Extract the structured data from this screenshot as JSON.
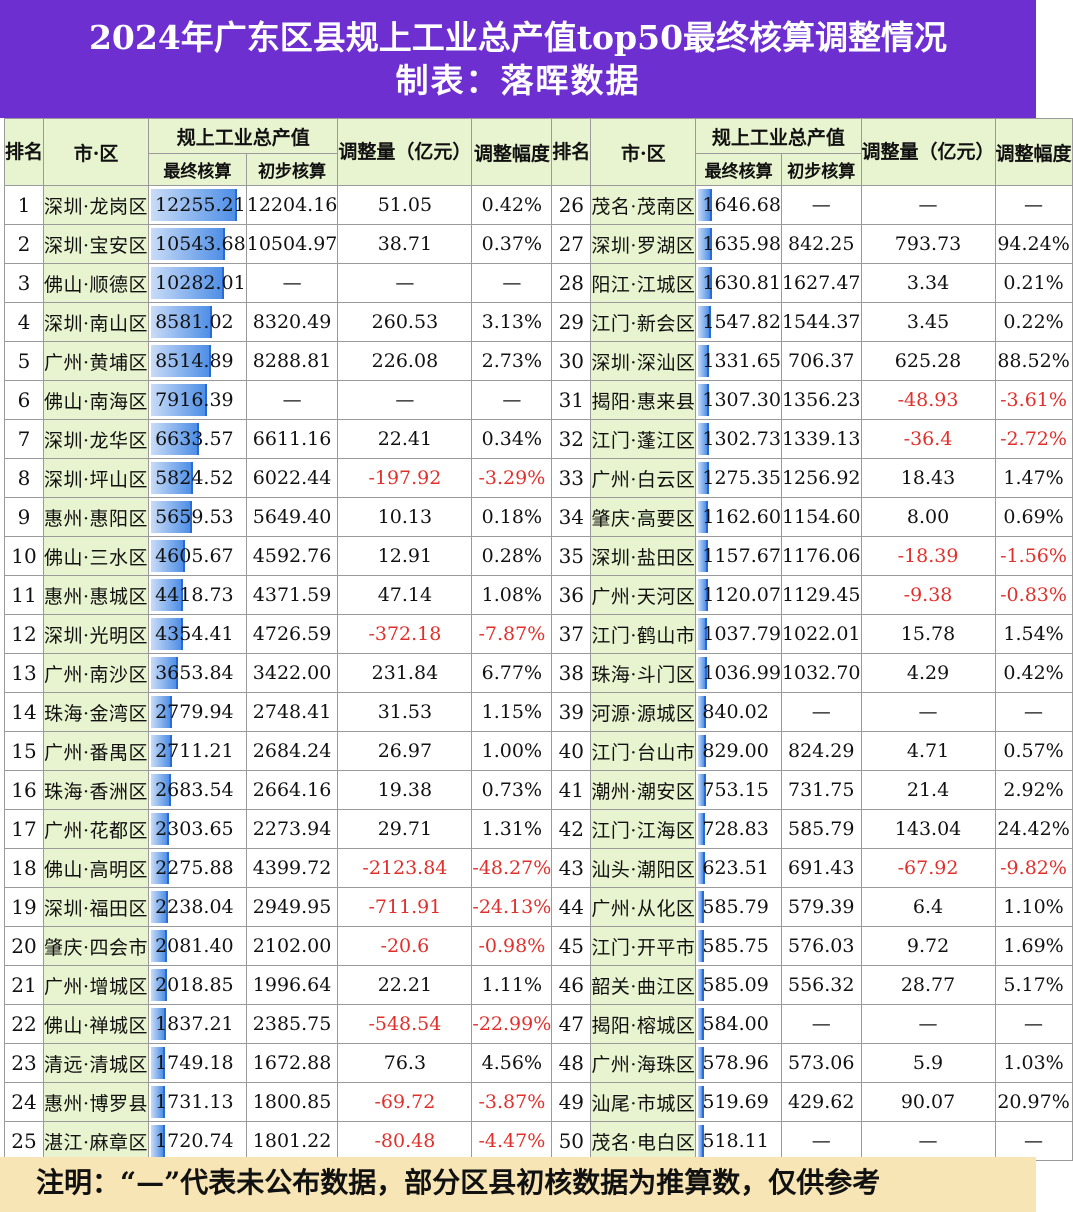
{
  "title": "2024年广东区县规上工业总产值top50最终核算调整情况",
  "subtitle": "制表：落晖数据",
  "headers": {
    "rank": "排名",
    "city": "市·区",
    "output": "规上工业总产值",
    "final": "最终核算",
    "prelim": "初步核算",
    "adj_amount": "调整量（亿元）",
    "adj_pct": "调整幅度"
  },
  "left_rows": [
    [
      "1",
      "深圳·龙岗区",
      "12255.21",
      "12204.16",
      "51.05",
      "0.42%"
    ],
    [
      "2",
      "深圳·宝安区",
      "10543.68",
      "10504.97",
      "38.71",
      "0.37%"
    ],
    [
      "3",
      "佛山·顺德区",
      "10282.01",
      "—",
      "—",
      "—"
    ],
    [
      "4",
      "深圳·南山区",
      "8581.02",
      "8320.49",
      "260.53",
      "3.13%"
    ],
    [
      "5",
      "广州·黄埔区",
      "8514.89",
      "8288.81",
      "226.08",
      "2.73%"
    ],
    [
      "6",
      "佛山·南海区",
      "7916.39",
      "—",
      "—",
      "—"
    ],
    [
      "7",
      "深圳·龙华区",
      "6633.57",
      "6611.16",
      "22.41",
      "0.34%"
    ],
    [
      "8",
      "深圳·坪山区",
      "5824.52",
      "6022.44",
      "-197.92",
      "-3.29%"
    ],
    [
      "9",
      "惠州·惠阳区",
      "5659.53",
      "5649.40",
      "10.13",
      "0.18%"
    ],
    [
      "10",
      "佛山·三水区",
      "4605.67",
      "4592.76",
      "12.91",
      "0.28%"
    ],
    [
      "11",
      "惠州·惠城区",
      "4418.73",
      "4371.59",
      "47.14",
      "1.08%"
    ],
    [
      "12",
      "深圳·光明区",
      "4354.41",
      "4726.59",
      "-372.18",
      "-7.87%"
    ],
    [
      "13",
      "广州·南沙区",
      "3653.84",
      "3422.00",
      "231.84",
      "6.77%"
    ],
    [
      "14",
      "珠海·金湾区",
      "2779.94",
      "2748.41",
      "31.53",
      "1.15%"
    ],
    [
      "15",
      "广州·番禺区",
      "2711.21",
      "2684.24",
      "26.97",
      "1.00%"
    ],
    [
      "16",
      "珠海·香洲区",
      "2683.54",
      "2664.16",
      "19.38",
      "0.73%"
    ],
    [
      "17",
      "广州·花都区",
      "2303.65",
      "2273.94",
      "29.71",
      "1.31%"
    ],
    [
      "18",
      "佛山·高明区",
      "2275.88",
      "4399.72",
      "-2123.84",
      "-48.27%"
    ],
    [
      "19",
      "深圳·福田区",
      "2238.04",
      "2949.95",
      "-711.91",
      "-24.13%"
    ],
    [
      "20",
      "肇庆·四会市",
      "2081.40",
      "2102.00",
      "-20.6",
      "-0.98%"
    ],
    [
      "21",
      "广州·增城区",
      "2018.85",
      "1996.64",
      "22.21",
      "1.11%"
    ],
    [
      "22",
      "佛山·禅城区",
      "1837.21",
      "2385.75",
      "-548.54",
      "-22.99%"
    ],
    [
      "23",
      "清远·清城区",
      "1749.18",
      "1672.88",
      "76.3",
      "4.56%"
    ],
    [
      "24",
      "惠州·博罗县",
      "1731.13",
      "1800.85",
      "-69.72",
      "-3.87%"
    ],
    [
      "25",
      "湛江·麻章区",
      "1720.74",
      "1801.22",
      "-80.48",
      "-4.47%"
    ]
  ],
  "right_rows": [
    [
      "26",
      "茂名·茂南区",
      "1646.68",
      "—",
      "—",
      "—"
    ],
    [
      "27",
      "深圳·罗湖区",
      "1635.98",
      "842.25",
      "793.73",
      "94.24%"
    ],
    [
      "28",
      "阳江·江城区",
      "1630.81",
      "1627.47",
      "3.34",
      "0.21%"
    ],
    [
      "29",
      "江门·新会区",
      "1547.82",
      "1544.37",
      "3.45",
      "0.22%"
    ],
    [
      "30",
      "深圳·深汕区",
      "1331.65",
      "706.37",
      "625.28",
      "88.52%"
    ],
    [
      "31",
      "揭阳·惠来县",
      "1307.30",
      "1356.23",
      "-48.93",
      "-3.61%"
    ],
    [
      "32",
      "江门·蓬江区",
      "1302.73",
      "1339.13",
      "-36.4",
      "-2.72%"
    ],
    [
      "33",
      "广州·白云区",
      "1275.35",
      "1256.92",
      "18.43",
      "1.47%"
    ],
    [
      "34",
      "肇庆·高要区",
      "1162.60",
      "1154.60",
      "8.00",
      "0.69%"
    ],
    [
      "35",
      "深圳·盐田区",
      "1157.67",
      "1176.06",
      "-18.39",
      "-1.56%"
    ],
    [
      "36",
      "广州·天河区",
      "1120.07",
      "1129.45",
      "-9.38",
      "-0.83%"
    ],
    [
      "37",
      "江门·鹤山市",
      "1037.79",
      "1022.01",
      "15.78",
      "1.54%"
    ],
    [
      "38",
      "珠海·斗门区",
      "1036.99",
      "1032.70",
      "4.29",
      "0.42%"
    ],
    [
      "39",
      "河源·源城区",
      "840.02",
      "—",
      "—",
      "—"
    ],
    [
      "40",
      "江门·台山市",
      "829.00",
      "824.29",
      "4.71",
      "0.57%"
    ],
    [
      "41",
      "潮州·潮安区",
      "753.15",
      "731.75",
      "21.4",
      "2.92%"
    ],
    [
      "42",
      "江门·江海区",
      "728.83",
      "585.79",
      "143.04",
      "24.42%"
    ],
    [
      "43",
      "汕头·潮阳区",
      "623.51",
      "691.43",
      "-67.92",
      "-9.82%"
    ],
    [
      "44",
      "广州·从化区",
      "585.79",
      "579.39",
      "6.4",
      "1.10%"
    ],
    [
      "45",
      "江门·开平市",
      "585.75",
      "576.03",
      "9.72",
      "1.69%"
    ],
    [
      "46",
      "韶关·曲江区",
      "585.09",
      "556.32",
      "28.77",
      "5.17%"
    ],
    [
      "47",
      "揭阳·榕城区",
      "584.00",
      "—",
      "—",
      "—"
    ],
    [
      "48",
      "广州·海珠区",
      "578.96",
      "573.06",
      "5.9",
      "1.03%"
    ],
    [
      "49",
      "汕尾·市城区",
      "519.69",
      "429.62",
      "90.07",
      "20.97%"
    ],
    [
      "50",
      "茂名·电白区",
      "518.11",
      "—",
      "—",
      "—"
    ]
  ],
  "bar_max": 12255.21,
  "footnote": "注明：“—”代表未公布数据，部分区县初核数据为推算数，仅供参考",
  "colors": {
    "header_bg": "#6e2fd0",
    "label_bg": "#e8f3cf",
    "bar": "#4f8fe6",
    "negative": "#e0302c",
    "footer_bg": "#f7e5b5"
  }
}
